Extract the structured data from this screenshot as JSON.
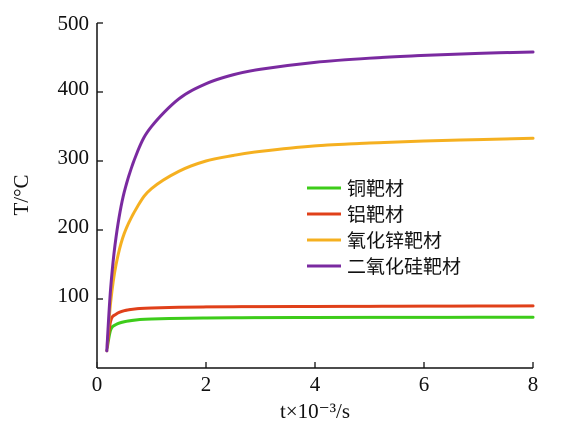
{
  "chart_data": {
    "type": "line",
    "title": "",
    "xlabel": "t×10⁻³/s",
    "ylabel": "T/°C",
    "xlim": [
      0,
      8
    ],
    "ylim": [
      0,
      500
    ],
    "x_ticks": [
      "0",
      "2",
      "4",
      "6",
      "8"
    ],
    "y_ticks": [
      "100",
      "200",
      "300",
      "400",
      "500"
    ],
    "grid": false,
    "legend_position": "center-right",
    "x": [
      0.18,
      0.25,
      0.35,
      0.5,
      0.75,
      1.0,
      1.5,
      2.0,
      2.5,
      3.0,
      4.0,
      5.0,
      6.0,
      7.0,
      8.0
    ],
    "series": [
      {
        "name": "铜靶材",
        "color": "#3dcc1a",
        "values": [
          25,
          55,
          63,
          67,
          70,
          71,
          72,
          72.5,
          72.8,
          73,
          73.2,
          73.3,
          73.4,
          73.5,
          73.5
        ]
      },
      {
        "name": "铝靶材",
        "color": "#e0401a",
        "values": [
          25,
          68,
          78,
          83,
          86,
          87,
          88,
          88.5,
          88.8,
          89,
          89.2,
          89.4,
          89.6,
          89.8,
          90
        ]
      },
      {
        "name": "氧化锌靶材",
        "color": "#f5b020",
        "values": [
          25,
          95,
          150,
          195,
          235,
          260,
          285,
          300,
          308,
          314,
          322,
          326,
          329,
          331,
          333
        ]
      },
      {
        "name": "二氧化硅靶材",
        "color": "#7a2aa0",
        "values": [
          25,
          115,
          190,
          255,
          315,
          350,
          390,
          412,
          425,
          433,
          443,
          449,
          453,
          456,
          458
        ]
      }
    ]
  }
}
